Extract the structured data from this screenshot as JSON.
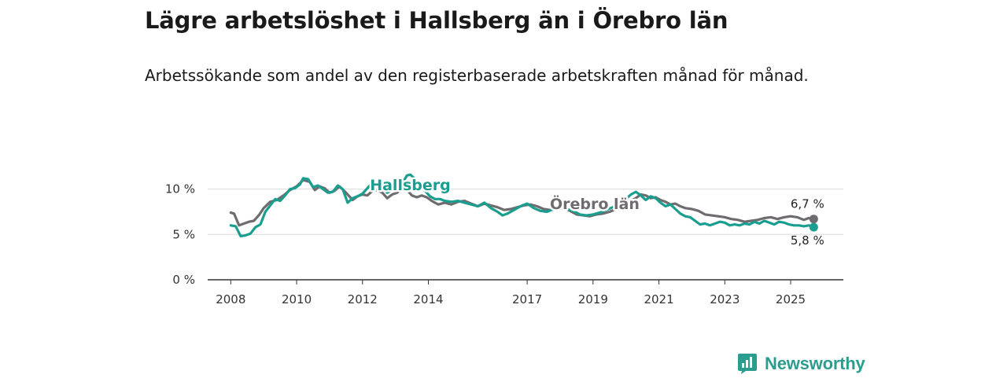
{
  "title": "Lägre arbetslöshet i Hallsberg än i Örebro län",
  "subtitle": "Arbetssökande som andel av den registerbaserade arbetskraften månad för månad.",
  "brand": {
    "name": "Newsworthy"
  },
  "chart_data": {
    "type": "line",
    "y_unit": "%",
    "ylim": [
      0,
      13
    ],
    "y_ticks": [
      {
        "value": 0,
        "label": "0 %"
      },
      {
        "value": 5,
        "label": "5 %"
      },
      {
        "value": 10,
        "label": "10 %"
      }
    ],
    "xlim": [
      2007.3,
      2026.6
    ],
    "x_ticks": [
      {
        "value": 2008,
        "label": "2008"
      },
      {
        "value": 2010,
        "label": "2010"
      },
      {
        "value": 2012,
        "label": "2012"
      },
      {
        "value": 2014,
        "label": "2014"
      },
      {
        "value": 2017,
        "label": "2017"
      },
      {
        "value": 2019,
        "label": "2019"
      },
      {
        "value": 2021,
        "label": "2021"
      },
      {
        "value": 2023,
        "label": "2023"
      },
      {
        "value": 2025,
        "label": "2025"
      }
    ],
    "series": [
      {
        "name": "Örebro län",
        "color": "#6f6c70",
        "end_label": "6,7 %",
        "points": [
          [
            2008.0,
            7.4
          ],
          [
            2008.1,
            7.3
          ],
          [
            2008.25,
            6.0
          ],
          [
            2008.4,
            6.2
          ],
          [
            2008.55,
            6.4
          ],
          [
            2008.7,
            6.5
          ],
          [
            2008.85,
            7.1
          ],
          [
            2009.0,
            7.9
          ],
          [
            2009.2,
            8.6
          ],
          [
            2009.4,
            8.8
          ],
          [
            2009.6,
            9.3
          ],
          [
            2009.8,
            9.9
          ],
          [
            2010.0,
            10.3
          ],
          [
            2010.2,
            11.0
          ],
          [
            2010.4,
            10.8
          ],
          [
            2010.55,
            9.9
          ],
          [
            2010.7,
            10.3
          ],
          [
            2010.85,
            10.1
          ],
          [
            2011.0,
            9.6
          ],
          [
            2011.15,
            9.8
          ],
          [
            2011.3,
            10.3
          ],
          [
            2011.5,
            9.6
          ],
          [
            2011.7,
            8.8
          ],
          [
            2011.85,
            9.2
          ],
          [
            2012.0,
            9.4
          ],
          [
            2012.15,
            9.3
          ],
          [
            2012.3,
            9.8
          ],
          [
            2012.45,
            9.9
          ],
          [
            2012.6,
            9.6
          ],
          [
            2012.75,
            9.0
          ],
          [
            2012.9,
            9.4
          ],
          [
            2013.05,
            9.6
          ],
          [
            2013.2,
            10.0
          ],
          [
            2013.35,
            9.9
          ],
          [
            2013.5,
            9.3
          ],
          [
            2013.65,
            9.1
          ],
          [
            2013.8,
            9.3
          ],
          [
            2013.95,
            9.1
          ],
          [
            2014.1,
            8.7
          ],
          [
            2014.3,
            8.3
          ],
          [
            2014.5,
            8.5
          ],
          [
            2014.7,
            8.3
          ],
          [
            2014.9,
            8.6
          ],
          [
            2015.1,
            8.7
          ],
          [
            2015.3,
            8.4
          ],
          [
            2015.5,
            8.1
          ],
          [
            2015.7,
            8.4
          ],
          [
            2015.9,
            8.2
          ],
          [
            2016.1,
            8.0
          ],
          [
            2016.3,
            7.7
          ],
          [
            2016.5,
            7.8
          ],
          [
            2016.7,
            8.0
          ],
          [
            2016.9,
            8.2
          ],
          [
            2017.1,
            8.3
          ],
          [
            2017.3,
            8.1
          ],
          [
            2017.5,
            7.8
          ],
          [
            2017.7,
            7.7
          ],
          [
            2017.9,
            7.8
          ],
          [
            2018.1,
            7.9
          ],
          [
            2018.3,
            7.6
          ],
          [
            2018.5,
            7.2
          ],
          [
            2018.7,
            7.1
          ],
          [
            2018.9,
            7.0
          ],
          [
            2019.1,
            7.2
          ],
          [
            2019.3,
            7.3
          ],
          [
            2019.5,
            7.5
          ],
          [
            2019.7,
            7.8
          ],
          [
            2019.9,
            8.2
          ],
          [
            2020.1,
            8.6
          ],
          [
            2020.3,
            9.0
          ],
          [
            2020.45,
            9.4
          ],
          [
            2020.6,
            9.3
          ],
          [
            2020.75,
            9.0
          ],
          [
            2020.9,
            9.1
          ],
          [
            2021.05,
            8.8
          ],
          [
            2021.2,
            8.6
          ],
          [
            2021.35,
            8.3
          ],
          [
            2021.5,
            8.4
          ],
          [
            2021.65,
            8.1
          ],
          [
            2021.8,
            7.9
          ],
          [
            2022.0,
            7.8
          ],
          [
            2022.2,
            7.6
          ],
          [
            2022.4,
            7.2
          ],
          [
            2022.6,
            7.1
          ],
          [
            2022.8,
            7.0
          ],
          [
            2023.0,
            6.9
          ],
          [
            2023.2,
            6.7
          ],
          [
            2023.4,
            6.6
          ],
          [
            2023.6,
            6.4
          ],
          [
            2023.8,
            6.5
          ],
          [
            2024.0,
            6.6
          ],
          [
            2024.2,
            6.8
          ],
          [
            2024.4,
            6.9
          ],
          [
            2024.6,
            6.7
          ],
          [
            2024.8,
            6.9
          ],
          [
            2025.0,
            7.0
          ],
          [
            2025.2,
            6.9
          ],
          [
            2025.4,
            6.6
          ],
          [
            2025.55,
            6.8
          ],
          [
            2025.7,
            6.7
          ]
        ]
      },
      {
        "name": "Hallsberg",
        "color": "#1a9e8f",
        "end_label": "5,8 %",
        "points": [
          [
            2008.0,
            6.0
          ],
          [
            2008.15,
            5.9
          ],
          [
            2008.3,
            4.8
          ],
          [
            2008.45,
            4.9
          ],
          [
            2008.6,
            5.1
          ],
          [
            2008.75,
            5.8
          ],
          [
            2008.9,
            6.1
          ],
          [
            2009.05,
            7.5
          ],
          [
            2009.2,
            8.2
          ],
          [
            2009.35,
            8.9
          ],
          [
            2009.5,
            8.7
          ],
          [
            2009.65,
            9.3
          ],
          [
            2009.8,
            10.0
          ],
          [
            2009.95,
            10.1
          ],
          [
            2010.1,
            10.5
          ],
          [
            2010.2,
            11.2
          ],
          [
            2010.35,
            11.1
          ],
          [
            2010.5,
            10.2
          ],
          [
            2010.65,
            10.4
          ],
          [
            2010.8,
            10.0
          ],
          [
            2010.95,
            9.6
          ],
          [
            2011.1,
            9.7
          ],
          [
            2011.25,
            10.4
          ],
          [
            2011.4,
            10.0
          ],
          [
            2011.55,
            8.5
          ],
          [
            2011.7,
            9.0
          ],
          [
            2011.85,
            9.2
          ],
          [
            2012.0,
            9.5
          ],
          [
            2012.15,
            10.1
          ],
          [
            2012.3,
            10.7
          ],
          [
            2012.45,
            10.3
          ],
          [
            2012.6,
            10.0
          ],
          [
            2012.75,
            9.6
          ],
          [
            2012.9,
            9.9
          ],
          [
            2013.05,
            10.4
          ],
          [
            2013.2,
            10.6
          ],
          [
            2013.35,
            11.5
          ],
          [
            2013.45,
            11.6
          ],
          [
            2013.6,
            11.1
          ],
          [
            2013.75,
            10.3
          ],
          [
            2013.9,
            9.8
          ],
          [
            2014.05,
            9.2
          ],
          [
            2014.2,
            8.9
          ],
          [
            2014.35,
            8.9
          ],
          [
            2014.5,
            8.7
          ],
          [
            2014.7,
            8.6
          ],
          [
            2014.9,
            8.7
          ],
          [
            2015.1,
            8.5
          ],
          [
            2015.3,
            8.3
          ],
          [
            2015.5,
            8.1
          ],
          [
            2015.7,
            8.5
          ],
          [
            2015.9,
            7.9
          ],
          [
            2016.1,
            7.5
          ],
          [
            2016.25,
            7.1
          ],
          [
            2016.4,
            7.3
          ],
          [
            2016.55,
            7.6
          ],
          [
            2016.7,
            7.9
          ],
          [
            2016.85,
            8.2
          ],
          [
            2017.0,
            8.4
          ],
          [
            2017.2,
            7.9
          ],
          [
            2017.4,
            7.6
          ],
          [
            2017.6,
            7.5
          ],
          [
            2017.8,
            7.8
          ],
          [
            2018.0,
            8.3
          ],
          [
            2018.2,
            7.8
          ],
          [
            2018.4,
            7.6
          ],
          [
            2018.6,
            7.2
          ],
          [
            2018.8,
            7.1
          ],
          [
            2019.0,
            7.2
          ],
          [
            2019.2,
            7.4
          ],
          [
            2019.4,
            7.7
          ],
          [
            2019.6,
            8.0
          ],
          [
            2019.8,
            8.3
          ],
          [
            2020.0,
            8.9
          ],
          [
            2020.15,
            9.4
          ],
          [
            2020.3,
            9.7
          ],
          [
            2020.45,
            9.3
          ],
          [
            2020.6,
            8.8
          ],
          [
            2020.75,
            9.2
          ],
          [
            2020.9,
            9.0
          ],
          [
            2021.05,
            8.5
          ],
          [
            2021.2,
            8.1
          ],
          [
            2021.35,
            8.3
          ],
          [
            2021.5,
            7.8
          ],
          [
            2021.65,
            7.3
          ],
          [
            2021.8,
            7.0
          ],
          [
            2021.95,
            6.9
          ],
          [
            2022.1,
            6.5
          ],
          [
            2022.25,
            6.1
          ],
          [
            2022.4,
            6.2
          ],
          [
            2022.55,
            6.0
          ],
          [
            2022.7,
            6.2
          ],
          [
            2022.85,
            6.4
          ],
          [
            2023.0,
            6.3
          ],
          [
            2023.15,
            6.0
          ],
          [
            2023.3,
            6.1
          ],
          [
            2023.45,
            6.0
          ],
          [
            2023.6,
            6.2
          ],
          [
            2023.75,
            6.1
          ],
          [
            2023.9,
            6.4
          ],
          [
            2024.05,
            6.2
          ],
          [
            2024.2,
            6.5
          ],
          [
            2024.35,
            6.3
          ],
          [
            2024.5,
            6.1
          ],
          [
            2024.65,
            6.4
          ],
          [
            2024.8,
            6.3
          ],
          [
            2024.95,
            6.1
          ],
          [
            2025.1,
            6.0
          ],
          [
            2025.25,
            6.0
          ],
          [
            2025.4,
            5.9
          ],
          [
            2025.55,
            6.0
          ],
          [
            2025.7,
            5.8
          ]
        ]
      }
    ]
  }
}
